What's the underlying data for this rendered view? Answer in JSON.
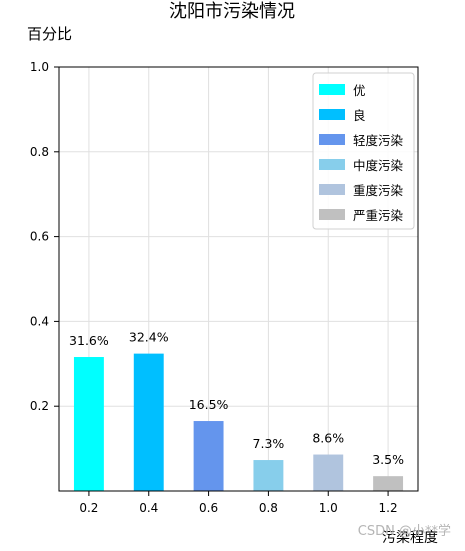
{
  "chart_data": {
    "type": "bar",
    "title": "沈阳市污染情况",
    "xlabel": "污染程度",
    "ylabel": "百分比",
    "ylim": [
      0,
      1.0
    ],
    "xlim": [
      0.1,
      1.3
    ],
    "yticks": [
      0.2,
      0.4,
      0.6,
      0.8,
      1.0
    ],
    "ytick_labels": [
      "0.2",
      "0.4",
      "0.6",
      "0.8",
      "1.0"
    ],
    "xticks": [
      0.2,
      0.4,
      0.6,
      0.8,
      1.0,
      1.2
    ],
    "xtick_labels": [
      "0.2",
      "0.4",
      "0.6",
      "0.8",
      "1.0",
      "1.2"
    ],
    "grid": true,
    "legend_position": "top-right",
    "bars": [
      {
        "name": "优",
        "x": 0.2,
        "value": 0.316,
        "label": "31.6%",
        "color": "#00ffff"
      },
      {
        "name": "良",
        "x": 0.4,
        "value": 0.324,
        "label": "32.4%",
        "color": "#00bfff"
      },
      {
        "name": "轻度污染",
        "x": 0.6,
        "value": 0.165,
        "label": "16.5%",
        "color": "#6495ed"
      },
      {
        "name": "中度污染",
        "x": 0.8,
        "value": 0.073,
        "label": "7.3%",
        "color": "#87ceeb"
      },
      {
        "name": "重度污染",
        "x": 1.0,
        "value": 0.086,
        "label": "8.6%",
        "color": "#b0c4de"
      },
      {
        "name": "严重污染",
        "x": 1.2,
        "value": 0.035,
        "label": "3.5%",
        "color": "#c0c0c0"
      }
    ]
  },
  "watermark": "CSDN @小**学"
}
